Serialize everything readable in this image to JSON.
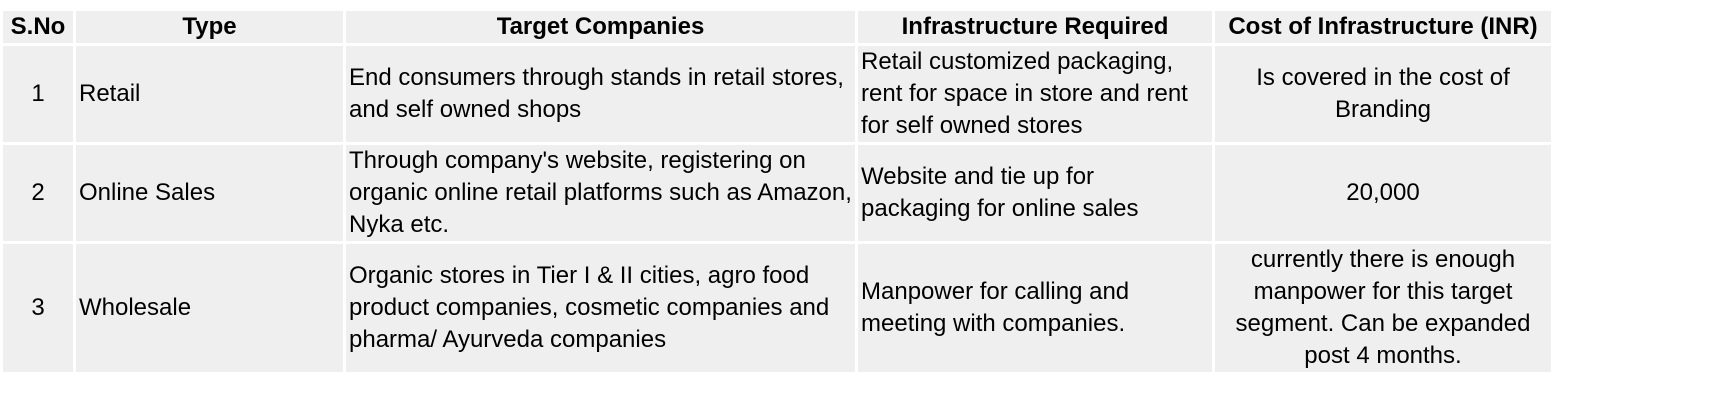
{
  "table": {
    "headers": [
      "S.No",
      "Type",
      "Target Companies",
      "Infrastructure Required",
      "Cost of Infrastructure (INR)"
    ],
    "rows": [
      {
        "sno": "1",
        "type": "Retail",
        "target": "End consumers through stands in retail stores, and self owned shops",
        "infra": "Retail customized packaging, rent for space in store and rent for self owned stores",
        "cost": "Is covered in the cost of Branding"
      },
      {
        "sno": "2",
        "type": "Online Sales",
        "target": "Through company's website, registering on organic online retail platforms such as Amazon, Nyka etc.",
        "infra": "Website and tie up for packaging for online sales",
        "cost": "20,000"
      },
      {
        "sno": "3",
        "type": "Wholesale",
        "target": "Organic stores in Tier I & II cities, agro food product companies, cosmetic companies and pharma/ Ayurveda companies",
        "infra": "Manpower for calling and meeting with companies.",
        "cost": "currently there is enough manpower for this target segment. Can be expanded post 4 months."
      }
    ]
  }
}
